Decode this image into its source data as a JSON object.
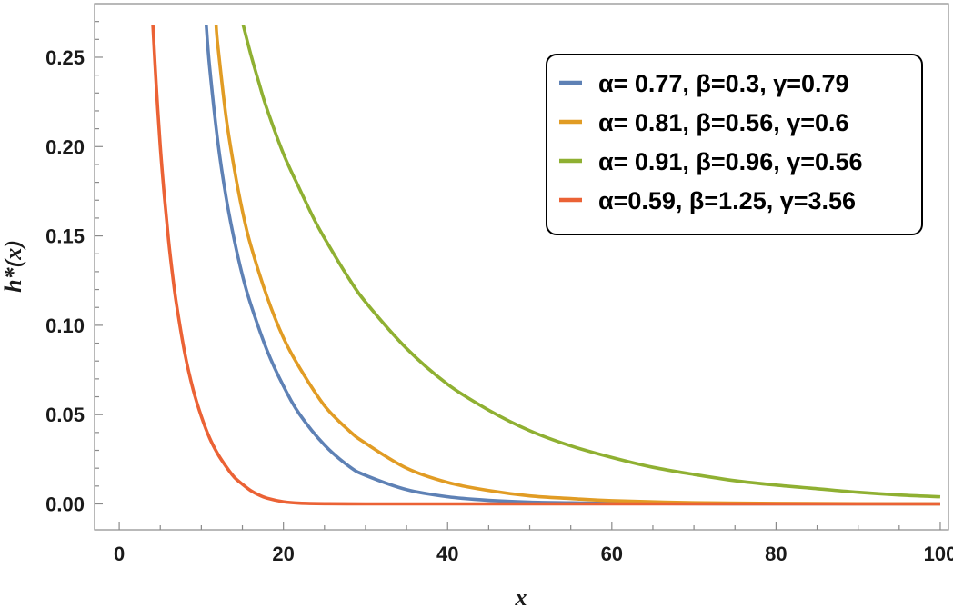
{
  "chart_data": {
    "type": "line",
    "xlabel": "x",
    "ylabel": "h*(x)",
    "xlim": [
      -3,
      101
    ],
    "ylim": [
      -0.0145,
      0.28
    ],
    "x_ticks": [
      "0",
      "20",
      "40",
      "60",
      "80",
      "100"
    ],
    "y_ticks": [
      "0.00",
      "0.05",
      "0.10",
      "0.15",
      "0.20",
      "0.25"
    ],
    "legend_position": "top-right",
    "grid": false,
    "series": [
      {
        "name": "α= 0.77, β=0.3, γ=0.79",
        "color": "#5e81b5",
        "x": [
          10.6,
          11,
          12,
          13,
          14,
          15,
          16,
          18,
          20,
          22,
          25,
          28,
          30,
          35,
          40,
          45,
          50,
          55,
          60,
          70,
          80,
          90,
          100
        ],
        "y": [
          0.268,
          0.245,
          0.203,
          0.172,
          0.148,
          0.128,
          0.112,
          0.086,
          0.066,
          0.05,
          0.033,
          0.021,
          0.016,
          0.008,
          0.004,
          0.002,
          0.001,
          0.0006,
          0.0003,
          0.0001,
          0.0,
          0.0,
          0.0
        ]
      },
      {
        "name": "α= 0.81, β=0.56, γ=0.6",
        "color": "#e19c24",
        "x": [
          11.8,
          12,
          13,
          14,
          15,
          16,
          18,
          20,
          22,
          25,
          28,
          30,
          35,
          40,
          45,
          50,
          55,
          60,
          70,
          80,
          90,
          100
        ],
        "y": [
          0.268,
          0.257,
          0.217,
          0.188,
          0.164,
          0.145,
          0.116,
          0.093,
          0.076,
          0.055,
          0.041,
          0.034,
          0.02,
          0.012,
          0.0075,
          0.0045,
          0.003,
          0.0018,
          0.0007,
          0.0003,
          0.0001,
          0.0
        ]
      },
      {
        "name": "α= 0.91, β=0.96, γ=0.56",
        "color": "#8fb032",
        "x": [
          15.1,
          16,
          17,
          18,
          20,
          22,
          24,
          26,
          28,
          30,
          35,
          40,
          45,
          50,
          55,
          60,
          65,
          70,
          75,
          80,
          85,
          90,
          95,
          100
        ],
        "y": [
          0.268,
          0.252,
          0.236,
          0.221,
          0.196,
          0.176,
          0.157,
          0.141,
          0.126,
          0.113,
          0.087,
          0.067,
          0.0525,
          0.041,
          0.0325,
          0.026,
          0.0205,
          0.0165,
          0.013,
          0.0105,
          0.0085,
          0.0065,
          0.005,
          0.004
        ]
      },
      {
        "name": "α=0.59, β=1.25, γ=3.56",
        "color": "#eb6235",
        "x": [
          4.1,
          4.5,
          5,
          5.5,
          6,
          6.5,
          7,
          8,
          9,
          10,
          11,
          12,
          13,
          14,
          15,
          16,
          17,
          18,
          20,
          22,
          25,
          30,
          40,
          60,
          80,
          100
        ],
        "y": [
          0.268,
          0.235,
          0.2,
          0.172,
          0.148,
          0.128,
          0.111,
          0.084,
          0.064,
          0.049,
          0.037,
          0.028,
          0.021,
          0.015,
          0.011,
          0.0075,
          0.005,
          0.0032,
          0.0012,
          0.0004,
          0.0001,
          0.0,
          0.0,
          0.0,
          0.0,
          0.0
        ]
      }
    ]
  }
}
